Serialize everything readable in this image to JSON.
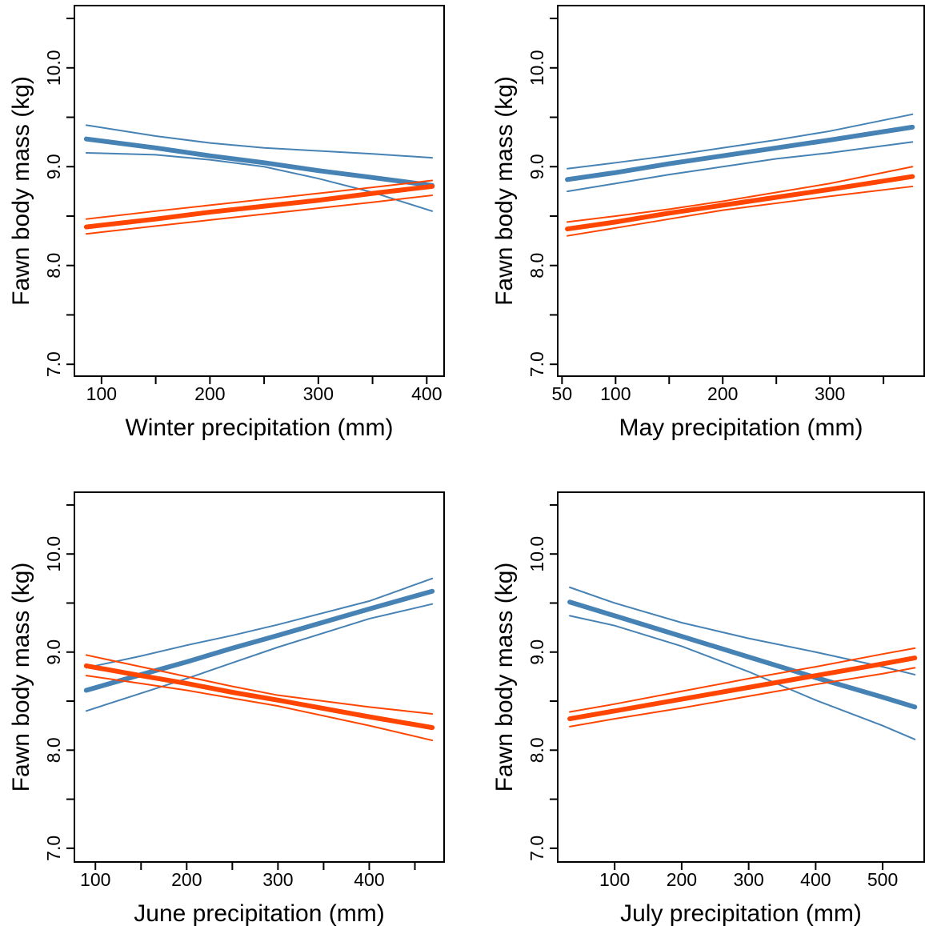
{
  "chart_data": [
    {
      "type": "line",
      "x_label": "Winter precipitation (mm)",
      "y_label": "Fawn body mass (kg)",
      "x": [
        86,
        150,
        200,
        250,
        300,
        350,
        405
      ],
      "series": [
        {
          "color": "#4682b4",
          "values": [
            9.42,
            9.31,
            9.24,
            9.19,
            9.16,
            9.13,
            9.09
          ]
        },
        {
          "color": "#4682b4",
          "values": [
            9.14,
            9.12,
            9.07,
            9.0,
            8.88,
            8.74,
            8.55
          ]
        },
        {
          "color": "#4682b4",
          "values": [
            9.28,
            9.19,
            9.11,
            9.04,
            8.96,
            8.89,
            8.81
          ]
        },
        {
          "color": "#ff4500",
          "values": [
            8.47,
            8.55,
            8.61,
            8.67,
            8.73,
            8.79,
            8.86
          ]
        },
        {
          "color": "#ff4500",
          "values": [
            8.32,
            8.4,
            8.46,
            8.52,
            8.58,
            8.64,
            8.71
          ]
        },
        {
          "color": "#ff4500",
          "values": [
            8.39,
            8.47,
            8.54,
            8.6,
            8.66,
            8.73,
            8.8
          ]
        }
      ],
      "xlim": [
        75,
        416
      ],
      "ylim": [
        6.88,
        10.63
      ],
      "xticks": [
        100,
        200,
        300,
        400
      ],
      "xticks_minor": [
        150,
        250,
        350
      ],
      "yticks": [
        {
          "value": 7,
          "label": "7.0"
        },
        {
          "value": 8,
          "label": "8.0"
        },
        {
          "value": 9,
          "label": "9.0"
        },
        {
          "value": 10,
          "label": "10.0"
        }
      ],
      "yticks_minor": [
        7.5,
        8.5,
        9.5,
        10.5
      ]
    },
    {
      "type": "line",
      "x_label": "May precipitation (mm)",
      "y_label": "Fawn body mass (kg)",
      "x": [
        55,
        100,
        150,
        200,
        250,
        300,
        377
      ],
      "series": [
        {
          "color": "#4682b4",
          "values": [
            8.98,
            9.04,
            9.11,
            9.19,
            9.27,
            9.36,
            9.53
          ]
        },
        {
          "color": "#4682b4",
          "values": [
            8.75,
            8.83,
            8.92,
            9.0,
            9.08,
            9.14,
            9.25
          ]
        },
        {
          "color": "#4682b4",
          "values": [
            8.87,
            8.94,
            9.03,
            9.11,
            9.19,
            9.27,
            9.4
          ]
        },
        {
          "color": "#ff4500",
          "values": [
            8.44,
            8.5,
            8.57,
            8.65,
            8.74,
            8.83,
            9.0
          ]
        },
        {
          "color": "#ff4500",
          "values": [
            8.3,
            8.38,
            8.47,
            8.56,
            8.63,
            8.7,
            8.8
          ]
        },
        {
          "color": "#ff4500",
          "values": [
            8.37,
            8.44,
            8.53,
            8.61,
            8.69,
            8.77,
            8.9
          ]
        }
      ],
      "xlim": [
        46,
        388
      ],
      "ylim": [
        6.88,
        10.63
      ],
      "xticks": [
        50,
        100,
        200,
        300
      ],
      "xticks_minor": [
        150,
        250,
        350
      ],
      "yticks": [
        {
          "value": 7,
          "label": "7.0"
        },
        {
          "value": 8,
          "label": "8.0"
        },
        {
          "value": 9,
          "label": "9.0"
        },
        {
          "value": 10,
          "label": "10.0"
        }
      ],
      "yticks_minor": [
        7.5,
        8.5,
        9.5,
        10.5
      ]
    },
    {
      "type": "line",
      "x_label": "June precipitation (mm)",
      "y_label": "Fawn body mass (kg)",
      "x": [
        90,
        150,
        200,
        250,
        300,
        400,
        469
      ],
      "series": [
        {
          "color": "#4682b4",
          "values": [
            8.84,
            8.96,
            9.07,
            9.17,
            9.28,
            9.52,
            9.75
          ]
        },
        {
          "color": "#4682b4",
          "values": [
            8.4,
            8.58,
            8.73,
            8.89,
            9.05,
            9.34,
            9.49
          ]
        },
        {
          "color": "#4682b4",
          "values": [
            8.61,
            8.77,
            8.9,
            9.04,
            9.17,
            9.44,
            9.62
          ]
        },
        {
          "color": "#ff4500",
          "values": [
            8.97,
            8.85,
            8.75,
            8.65,
            8.56,
            8.44,
            8.37
          ]
        },
        {
          "color": "#ff4500",
          "values": [
            8.76,
            8.68,
            8.61,
            8.53,
            8.45,
            8.25,
            8.1
          ]
        },
        {
          "color": "#ff4500",
          "values": [
            8.86,
            8.76,
            8.68,
            8.59,
            8.51,
            8.34,
            8.23
          ]
        }
      ],
      "xlim": [
        77,
        482
      ],
      "ylim": [
        6.86,
        10.63
      ],
      "xticks": [
        100,
        200,
        300,
        400
      ],
      "xticks_minor": [
        150,
        250,
        350,
        450
      ],
      "yticks": [
        {
          "value": 7,
          "label": "7.0"
        },
        {
          "value": 8,
          "label": "8.0"
        },
        {
          "value": 9,
          "label": "9.0"
        },
        {
          "value": 10,
          "label": "10.0"
        }
      ],
      "yticks_minor": [
        7.5,
        8.5,
        9.5,
        10.5
      ]
    },
    {
      "type": "line",
      "x_label": "July precipitation (mm)",
      "y_label": "Fawn body mass (kg)",
      "x": [
        33,
        100,
        200,
        300,
        400,
        500,
        548
      ],
      "series": [
        {
          "color": "#4682b4",
          "values": [
            9.66,
            9.5,
            9.3,
            9.14,
            9.0,
            8.85,
            8.77
          ]
        },
        {
          "color": "#4682b4",
          "values": [
            9.37,
            9.27,
            9.06,
            8.8,
            8.51,
            8.25,
            8.11
          ]
        },
        {
          "color": "#4682b4",
          "values": [
            9.51,
            9.37,
            9.16,
            8.95,
            8.74,
            8.54,
            8.44
          ]
        },
        {
          "color": "#ff4500",
          "values": [
            8.39,
            8.47,
            8.6,
            8.73,
            8.85,
            8.98,
            9.04
          ]
        },
        {
          "color": "#ff4500",
          "values": [
            8.24,
            8.32,
            8.43,
            8.55,
            8.67,
            8.78,
            8.84
          ]
        },
        {
          "color": "#ff4500",
          "values": [
            8.32,
            8.4,
            8.52,
            8.64,
            8.76,
            8.88,
            8.94
          ]
        }
      ],
      "xlim": [
        15,
        562
      ],
      "ylim": [
        6.86,
        10.63
      ],
      "xticks": [
        100,
        200,
        300,
        400,
        500
      ],
      "yticks": [
        {
          "value": 7,
          "label": "7.0"
        },
        {
          "value": 8,
          "label": "8.0"
        },
        {
          "value": 9,
          "label": "9.0"
        },
        {
          "value": 10,
          "label": "10.0"
        }
      ],
      "yticks_minor": [
        7.5,
        8.5,
        9.5,
        10.5
      ]
    }
  ]
}
